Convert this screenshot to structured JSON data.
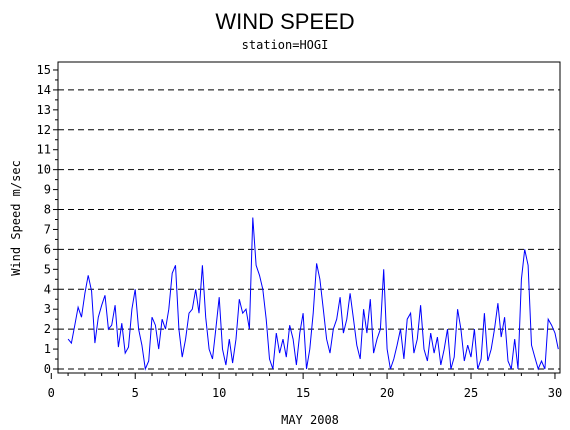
{
  "chart_data": {
    "type": "line",
    "title": "WIND SPEED",
    "subtitle": "station=HOGI",
    "xlabel": "MAY 2008",
    "ylabel": "Wind Speed m/sec",
    "xlim": [
      0.4,
      30.3
    ],
    "ylim": [
      -0.2,
      15.4
    ],
    "x_ticks": [
      0,
      5,
      10,
      15,
      20,
      25,
      30
    ],
    "y_ticks": [
      0,
      1,
      2,
      3,
      4,
      5,
      6,
      7,
      8,
      9,
      10,
      11,
      12,
      13,
      14,
      15
    ],
    "grid_dashed_y": [
      2,
      4,
      6,
      8,
      10,
      12,
      14,
      0
    ],
    "series_color": "#0000ff",
    "series": [
      {
        "x": [
          1.0,
          1.2,
          1.4,
          1.6,
          1.8,
          2.0,
          2.2,
          2.4,
          2.6,
          2.8,
          3.0,
          3.2,
          3.4,
          3.6,
          3.8,
          4.0,
          4.2,
          4.4,
          4.6,
          4.8,
          5.0,
          5.2,
          5.4,
          5.6,
          5.8,
          6.0,
          6.2,
          6.4,
          6.6,
          6.8,
          7.0,
          7.2,
          7.4,
          7.6,
          7.8,
          8.0,
          8.2,
          8.4,
          8.6,
          8.8,
          9.0,
          9.2,
          9.4,
          9.6,
          9.8,
          10.0,
          10.2,
          10.4,
          10.6,
          10.8,
          11.0,
          11.2,
          11.4,
          11.6,
          11.8,
          12.0,
          12.2,
          12.4,
          12.6,
          12.8,
          13.0,
          13.2,
          13.4,
          13.6,
          13.8,
          14.0,
          14.2,
          14.4,
          14.6,
          14.8,
          15.0,
          15.2,
          15.4,
          15.6,
          15.8,
          16.0,
          16.2,
          16.4,
          16.6,
          16.8,
          17.0,
          17.2,
          17.4,
          17.6,
          17.8,
          18.0,
          18.2,
          18.4,
          18.6,
          18.8,
          19.0,
          19.2,
          19.4,
          19.6,
          19.8,
          20.0,
          20.2,
          20.4,
          20.6,
          20.8,
          21.0,
          21.2,
          21.4,
          21.6,
          21.8,
          22.0,
          22.2,
          22.4,
          22.6,
          22.8,
          23.0,
          23.2,
          23.4,
          23.6,
          23.8,
          24.0,
          24.2,
          24.4,
          24.6,
          24.8,
          25.0,
          25.2,
          25.4,
          25.6,
          25.8,
          26.0,
          26.2,
          26.4,
          26.6,
          26.8,
          27.0,
          27.2,
          27.4,
          27.6,
          27.8,
          28.0,
          28.2,
          28.4,
          28.6,
          28.8,
          29.0,
          29.2,
          29.4,
          29.6,
          29.8,
          30.0,
          30.2
        ],
        "values": [
          1.5,
          1.3,
          2.2,
          3.1,
          2.6,
          3.8,
          4.7,
          3.9,
          1.3,
          2.6,
          3.2,
          3.7,
          2.0,
          2.2,
          3.2,
          1.1,
          2.3,
          0.8,
          1.1,
          3.0,
          4.0,
          2.0,
          1.2,
          0.0,
          0.4,
          2.6,
          2.2,
          1.0,
          2.5,
          2.0,
          3.0,
          4.8,
          5.2,
          2.0,
          0.6,
          1.5,
          2.8,
          3.0,
          4.0,
          2.8,
          5.2,
          2.6,
          1.0,
          0.5,
          2.0,
          3.6,
          1.0,
          0.2,
          1.5,
          0.3,
          1.5,
          3.5,
          2.8,
          3.0,
          2.0,
          7.6,
          5.2,
          4.7,
          4.0,
          2.5,
          0.5,
          0.0,
          1.8,
          0.8,
          1.5,
          0.6,
          2.2,
          1.5,
          0.2,
          1.8,
          2.8,
          0.0,
          1.0,
          2.8,
          5.3,
          4.5,
          3.0,
          1.5,
          0.8,
          2.0,
          2.5,
          3.6,
          1.8,
          2.5,
          3.8,
          2.5,
          1.2,
          0.5,
          3.0,
          1.8,
          3.5,
          0.8,
          1.5,
          2.0,
          5.0,
          1.0,
          0.0,
          0.5,
          1.2,
          2.0,
          0.5,
          2.5,
          2.8,
          0.8,
          1.5,
          3.2,
          1.0,
          0.4,
          1.8,
          0.8,
          1.6,
          0.2,
          1.0,
          2.0,
          0.0,
          0.6,
          3.0,
          2.0,
          0.4,
          1.2,
          0.6,
          2.0,
          0.0,
          0.5,
          2.8,
          0.4,
          1.0,
          2.0,
          3.3,
          1.6,
          2.6,
          0.4,
          0.0,
          1.5,
          0.0,
          4.5,
          6.0,
          5.2,
          1.2,
          0.6,
          0.0,
          0.4,
          0.0,
          2.5,
          2.2,
          1.8,
          1.0
        ]
      }
    ]
  }
}
